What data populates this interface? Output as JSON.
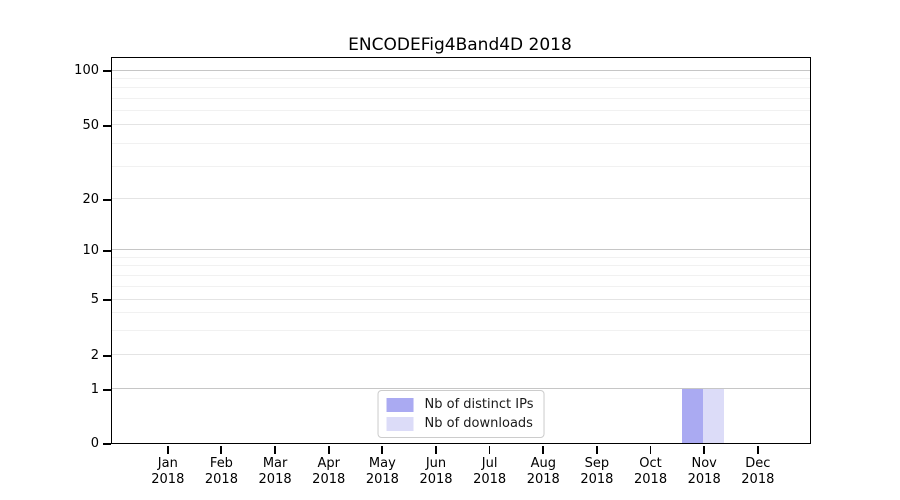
{
  "chart_data": {
    "type": "bar",
    "title": "ENCODEFig4Band4D 2018",
    "categories": [
      "Jan",
      "Feb",
      "Mar",
      "Apr",
      "May",
      "Jun",
      "Jul",
      "Aug",
      "Sep",
      "Oct",
      "Nov",
      "Dec"
    ],
    "x_year": "2018",
    "series": [
      {
        "name": "Nb of distinct IPs",
        "color": "#aaaaf2",
        "values": [
          0,
          0,
          0,
          0,
          0,
          0,
          0,
          0,
          0,
          0,
          1,
          0
        ]
      },
      {
        "name": "Nb of downloads",
        "color": "#dcdcf8",
        "values": [
          0,
          0,
          0,
          0,
          0,
          0,
          0,
          0,
          0,
          0,
          1,
          0
        ]
      }
    ],
    "yticks": [
      0,
      1,
      2,
      5,
      10,
      20,
      50,
      100
    ],
    "minor_yticks": [
      3,
      4,
      6,
      7,
      8,
      9,
      30,
      40,
      60,
      70,
      80,
      90
    ],
    "scale": "symlog",
    "ylim": [
      0,
      112
    ],
    "grid": true,
    "legend_position": "lower center",
    "background": "#ffffff"
  }
}
